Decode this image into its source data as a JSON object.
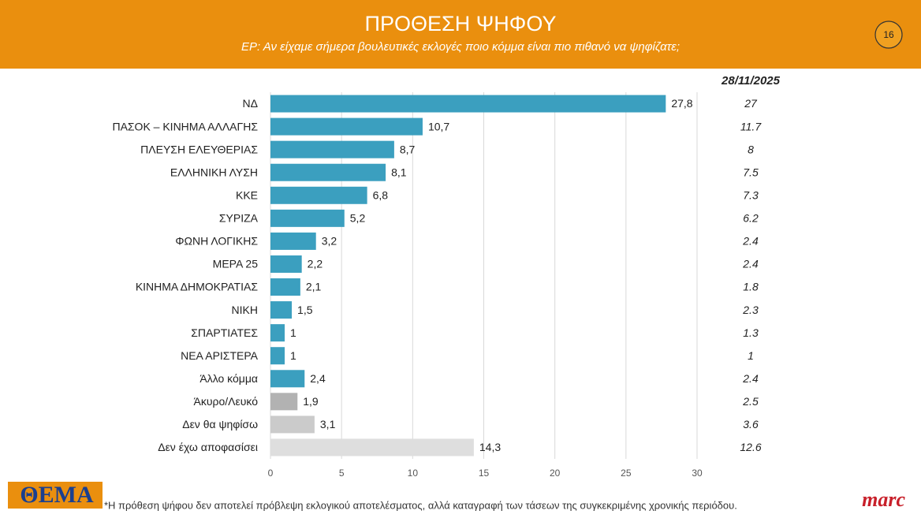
{
  "slide": {
    "page_number": 16,
    "footnote": "*Η πρόθεση ψήφου δεν αποτελεί πρόβλεψη εκλογικού αποτελέσματος, αλλά καταγραφή των τάσεων της συγκεκριμένης χρονικής περιόδου.",
    "logo_left": "ΘΕΜΑ",
    "logo_right": "marc"
  },
  "chart_data": {
    "type": "barh",
    "title": "ΠΡΟΘΕΣΗ ΨΗΦΟΥ",
    "subtitle": "ΕΡ: Αν είχαμε σήμερα βουλευτικές εκλογές ποιο κόμμα είναι πιο πιθανό να ψηφίζατε;",
    "categories": [
      "ΝΔ",
      "ΠΑΣΟΚ – ΚΙΝΗΜΑ ΑΛΛΑΓΗΣ",
      "ΠΛΕΥΣΗ ΕΛΕΥΘΕΡΙΑΣ",
      "ΕΛΛΗΝΙΚΗ ΛΥΣΗ",
      "ΚΚΕ",
      "ΣΥΡΙΖΑ",
      "ΦΩΝΗ ΛΟΓΙΚΗΣ",
      "ΜΕΡΑ 25",
      "ΚΙΝΗΜΑ ΔΗΜΟΚΡΑΤΙΑΣ",
      "ΝΙΚΗ",
      "ΣΠΑΡΤΙΑΤΕΣ",
      "ΝΕΑ ΑΡΙΣΤΕΡΑ",
      "Άλλο κόμμα",
      "Άκυρο/Λευκό",
      "Δεν θα ψηφίσω",
      "Δεν έχω αποφασίσει"
    ],
    "values": [
      27.8,
      10.7,
      8.7,
      8.1,
      6.8,
      5.2,
      3.2,
      2.2,
      2.1,
      1.5,
      1,
      1,
      2.4,
      1.9,
      3.1,
      14.3
    ],
    "value_labels": [
      "27,8",
      "10,7",
      "8,7",
      "8,1",
      "6,8",
      "5,2",
      "3,2",
      "2,2",
      "2,1",
      "1,5",
      "1",
      "1",
      "2,4",
      "1,9",
      "3,1",
      "14,3"
    ],
    "colors": [
      "#3b9fbf",
      "#3b9fbf",
      "#3b9fbf",
      "#3b9fbf",
      "#3b9fbf",
      "#3b9fbf",
      "#3b9fbf",
      "#3b9fbf",
      "#3b9fbf",
      "#3b9fbf",
      "#3b9fbf",
      "#3b9fbf",
      "#3b9fbf",
      "#b2b2b2",
      "#cbcbcb",
      "#dedede"
    ],
    "xlim": [
      0,
      30
    ],
    "xticks": [
      0,
      5,
      10,
      15,
      20,
      25,
      30
    ],
    "grid": true,
    "comparison": {
      "title": "28/11/2025",
      "values": [
        27,
        11.7,
        8,
        7.5,
        7.3,
        6.2,
        2.4,
        2.4,
        1.8,
        2.3,
        1.3,
        1,
        2.4,
        2.5,
        3.6,
        12.6
      ]
    }
  }
}
